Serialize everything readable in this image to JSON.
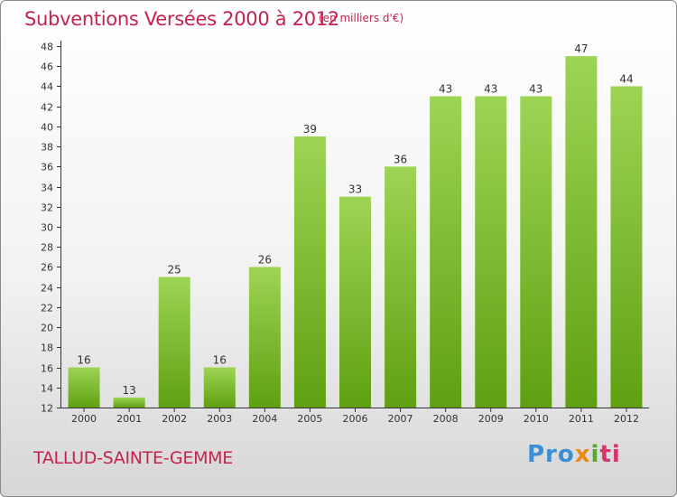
{
  "header": {
    "title": "Subventions Versées 2000 à 2012",
    "subtitle": "(en milliers d'€)"
  },
  "footer": {
    "commune": "TALLUD-SAINTE-GEMME",
    "logo": [
      "Pro",
      "x",
      "i",
      "ti"
    ]
  },
  "colors": {
    "title": "#c4234f",
    "bar_top": "#9ed455",
    "bar_bottom": "#5fa012",
    "axis": "#333333",
    "grid": "#cccccc"
  },
  "chart_data": {
    "type": "bar",
    "title": "Subventions Versées 2000 à 2012",
    "subtitle": "(en milliers d'€)",
    "xlabel": "",
    "ylabel": "",
    "categories": [
      "2000",
      "2001",
      "2002",
      "2003",
      "2004",
      "2005",
      "2006",
      "2007",
      "2008",
      "2009",
      "2010",
      "2011",
      "2012"
    ],
    "values": [
      16,
      13,
      25,
      16,
      26,
      39,
      33,
      36,
      43,
      43,
      43,
      47,
      44
    ],
    "ylim": [
      12,
      48
    ],
    "yticks": [
      12,
      14,
      16,
      18,
      20,
      22,
      24,
      26,
      28,
      30,
      32,
      34,
      36,
      38,
      40,
      42,
      44,
      46,
      48
    ],
    "grid": false,
    "data_labels": true
  }
}
